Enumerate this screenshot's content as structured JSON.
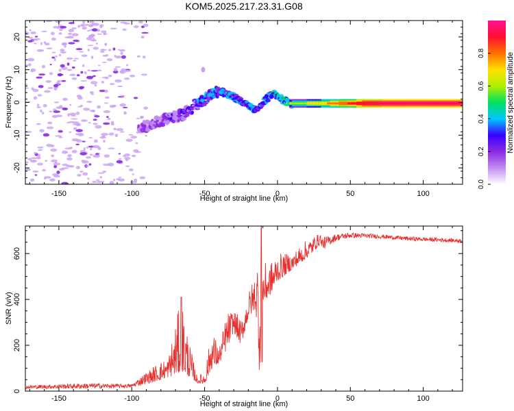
{
  "title": "KOM5.2025.217.23.31.G08",
  "chart_data": [
    {
      "type": "heatmap",
      "xlabel": "Height of straight line (km)",
      "ylabel": "Frequency (Hz)",
      "xlim": [
        -173,
        127
      ],
      "ylim": [
        -25,
        25
      ],
      "xticks": [
        -150,
        -100,
        -50,
        0,
        50,
        100
      ],
      "yticks": [
        -20,
        -10,
        0,
        10,
        20
      ],
      "colorbar": {
        "label": "Normalized spectral amplitude",
        "range": [
          0,
          1
        ],
        "ticks": [
          "0.0",
          "0.2",
          "0.4",
          "0.6",
          "0.8"
        ],
        "colors": [
          "#ffffff",
          "#c28cf2",
          "#8a2be2",
          "#3a00ff",
          "#00c8ff",
          "#00e060",
          "#b0f000",
          "#ffe000",
          "#ff7000",
          "#ff1030",
          "#ff1090"
        ]
      },
      "trace": {
        "x": [
          -95,
          -85,
          -75,
          -65,
          -58,
          -50,
          -45,
          -40,
          -35,
          -30,
          -25,
          -20,
          -15,
          -12,
          -8,
          -4,
          0,
          5,
          10,
          20,
          40,
          60,
          80,
          100,
          127
        ],
        "y": [
          -8,
          -6.5,
          -5,
          -3.5,
          -1.5,
          1,
          2.5,
          3.5,
          2.5,
          1.5,
          0.5,
          -1,
          -2.5,
          -1,
          1,
          2.5,
          2,
          0.5,
          -0.5,
          -0.3,
          -0.2,
          -0.3,
          -0.2,
          -0.3,
          -0.3
        ],
        "amplitude": [
          0.25,
          0.25,
          0.3,
          0.3,
          0.35,
          0.4,
          0.45,
          0.45,
          0.45,
          0.45,
          0.4,
          0.45,
          0.45,
          0.4,
          0.45,
          0.45,
          0.5,
          0.55,
          0.6,
          0.65,
          0.8,
          0.95,
          1.0,
          1.0,
          1.0
        ]
      },
      "noise_x_range": [
        -173,
        -90
      ]
    },
    {
      "type": "line",
      "series": [
        {
          "color": "#e8302e"
        }
      ],
      "xlabel": "Height of straight line (km)",
      "ylabel": "SNR (v/v)",
      "xlim": [
        -173,
        127
      ],
      "ylim": [
        0,
        720
      ],
      "xticks": [
        -150,
        -100,
        -50,
        0,
        50,
        100
      ],
      "yticks": [
        0,
        200,
        400,
        600
      ],
      "envelope": {
        "x": [
          -173,
          -130,
          -100,
          -85,
          -75,
          -66,
          -60,
          -55,
          -50,
          -45,
          -40,
          -35,
          -30,
          -25,
          -20,
          -15,
          -12,
          -10,
          -5,
          0,
          10,
          20,
          30,
          40,
          50,
          70,
          90,
          110,
          127
        ],
        "baseline": [
          10,
          10,
          15,
          40,
          60,
          80,
          60,
          35,
          30,
          100,
          120,
          180,
          260,
          200,
          320,
          360,
          100,
          380,
          420,
          480,
          530,
          580,
          640,
          670,
          680,
          675,
          665,
          660,
          655
        ],
        "peak": [
          25,
          35,
          30,
          110,
          150,
          410,
          200,
          60,
          90,
          270,
          190,
          340,
          360,
          310,
          430,
          520,
          720,
          560,
          560,
          600,
          600,
          660,
          690,
          695,
          700,
          690,
          680,
          675,
          670
        ]
      }
    }
  ]
}
